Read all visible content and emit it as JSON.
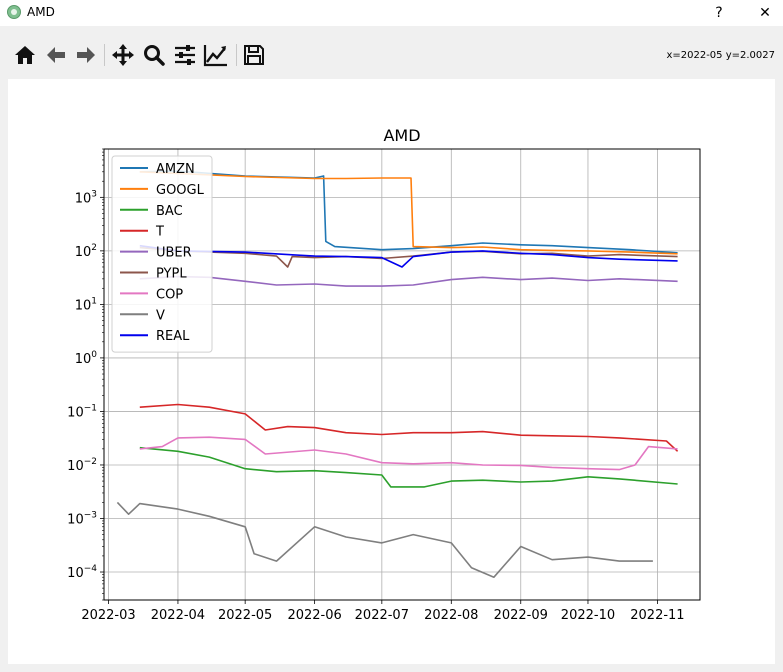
{
  "window": {
    "title": "AMD",
    "help_label": "?",
    "close_label": "✕"
  },
  "toolbar": {
    "buttons": [
      "home-icon",
      "back-icon",
      "forward-icon",
      "pan-icon",
      "zoom-icon",
      "configure-icon",
      "edit-axes-icon",
      "save-icon"
    ],
    "coord_readout": "x=2022-05 y=2.0027"
  },
  "chart_data": {
    "type": "line",
    "title": "AMD",
    "xlabel": "",
    "ylabel": "",
    "yscale": "log",
    "xlim": [
      "2022-02-27",
      "2022-11-20"
    ],
    "ylim": [
      3e-05,
      8000
    ],
    "grid": true,
    "legend_placement": "upper-left",
    "x_ticks": [
      "2022-03",
      "2022-04",
      "2022-05",
      "2022-06",
      "2022-07",
      "2022-08",
      "2022-09",
      "2022-10",
      "2022-11"
    ],
    "y_ticks": [
      {
        "value": 0.0001,
        "base": "10",
        "exp": "−4"
      },
      {
        "value": 0.001,
        "base": "10",
        "exp": "−3"
      },
      {
        "value": 0.01,
        "base": "10",
        "exp": "−2"
      },
      {
        "value": 0.1,
        "base": "10",
        "exp": "−1"
      },
      {
        "value": 1,
        "base": "10",
        "exp": "0"
      },
      {
        "value": 10,
        "base": "10",
        "exp": "1"
      },
      {
        "value": 100,
        "base": "10",
        "exp": "2"
      },
      {
        "value": 1000,
        "base": "10",
        "exp": "3"
      }
    ],
    "series": [
      {
        "name": "AMZN",
        "color": "#1f77b4",
        "points": [
          [
            "2022-03-15",
            3000
          ],
          [
            "2022-04-01",
            3100
          ],
          [
            "2022-05-01",
            2500
          ],
          [
            "2022-06-01",
            2300
          ],
          [
            "2022-06-05",
            2500
          ],
          [
            "2022-06-06",
            150
          ],
          [
            "2022-06-10",
            120
          ],
          [
            "2022-07-01",
            105
          ],
          [
            "2022-07-15",
            110
          ],
          [
            "2022-08-01",
            125
          ],
          [
            "2022-08-15",
            140
          ],
          [
            "2022-09-01",
            130
          ],
          [
            "2022-09-15",
            125
          ],
          [
            "2022-10-01",
            115
          ],
          [
            "2022-10-20",
            105
          ],
          [
            "2022-11-10",
            92
          ]
        ]
      },
      {
        "name": "GOOGL",
        "color": "#ff7f0e",
        "points": [
          [
            "2022-03-15",
            3000
          ],
          [
            "2022-04-01",
            2800
          ],
          [
            "2022-05-01",
            2450
          ],
          [
            "2022-06-01",
            2250
          ],
          [
            "2022-06-15",
            2250
          ],
          [
            "2022-07-01",
            2300
          ],
          [
            "2022-07-14",
            2300
          ],
          [
            "2022-07-15",
            120
          ],
          [
            "2022-08-01",
            115
          ],
          [
            "2022-08-15",
            118
          ],
          [
            "2022-09-01",
            105
          ],
          [
            "2022-09-15",
            102
          ],
          [
            "2022-10-01",
            100
          ],
          [
            "2022-10-20",
            95
          ],
          [
            "2022-11-10",
            88
          ]
        ]
      },
      {
        "name": "BAC",
        "color": "#2ca02c",
        "points": [
          [
            "2022-03-15",
            0.021
          ],
          [
            "2022-04-01",
            0.018
          ],
          [
            "2022-04-15",
            0.014
          ],
          [
            "2022-05-01",
            0.0085
          ],
          [
            "2022-05-15",
            0.0075
          ],
          [
            "2022-06-01",
            0.0078
          ],
          [
            "2022-06-15",
            0.0072
          ],
          [
            "2022-07-01",
            0.0065
          ],
          [
            "2022-07-05",
            0.0039
          ],
          [
            "2022-07-20",
            0.0039
          ],
          [
            "2022-08-01",
            0.005
          ],
          [
            "2022-08-15",
            0.0052
          ],
          [
            "2022-09-01",
            0.0048
          ],
          [
            "2022-09-15",
            0.005
          ],
          [
            "2022-10-01",
            0.006
          ],
          [
            "2022-10-15",
            0.0055
          ],
          [
            "2022-11-10",
            0.0044
          ]
        ]
      },
      {
        "name": "T",
        "color": "#d62728",
        "points": [
          [
            "2022-03-15",
            0.12
          ],
          [
            "2022-04-01",
            0.135
          ],
          [
            "2022-04-15",
            0.12
          ],
          [
            "2022-05-01",
            0.09
          ],
          [
            "2022-05-10",
            0.045
          ],
          [
            "2022-05-20",
            0.052
          ],
          [
            "2022-06-01",
            0.05
          ],
          [
            "2022-06-15",
            0.04
          ],
          [
            "2022-07-01",
            0.037
          ],
          [
            "2022-07-15",
            0.04
          ],
          [
            "2022-08-01",
            0.04
          ],
          [
            "2022-08-15",
            0.042
          ],
          [
            "2022-09-01",
            0.036
          ],
          [
            "2022-09-15",
            0.035
          ],
          [
            "2022-10-01",
            0.034
          ],
          [
            "2022-10-15",
            0.032
          ],
          [
            "2022-11-05",
            0.028
          ],
          [
            "2022-11-10",
            0.018
          ]
        ]
      },
      {
        "name": "UBER",
        "color": "#9467bd",
        "points": [
          [
            "2022-03-15",
            30
          ],
          [
            "2022-04-01",
            33
          ],
          [
            "2022-04-15",
            32
          ],
          [
            "2022-05-01",
            27
          ],
          [
            "2022-05-15",
            23
          ],
          [
            "2022-06-01",
            24
          ],
          [
            "2022-06-15",
            22
          ],
          [
            "2022-07-01",
            22
          ],
          [
            "2022-07-15",
            23
          ],
          [
            "2022-08-01",
            29
          ],
          [
            "2022-08-15",
            32
          ],
          [
            "2022-09-01",
            29
          ],
          [
            "2022-09-15",
            31
          ],
          [
            "2022-10-01",
            28
          ],
          [
            "2022-10-15",
            30
          ],
          [
            "2022-11-10",
            27
          ]
        ]
      },
      {
        "name": "PYPL",
        "color": "#8c564b",
        "points": [
          [
            "2022-03-15",
            115
          ],
          [
            "2022-04-01",
            100
          ],
          [
            "2022-05-01",
            90
          ],
          [
            "2022-05-15",
            80
          ],
          [
            "2022-05-20",
            50
          ],
          [
            "2022-05-22",
            78
          ],
          [
            "2022-06-01",
            75
          ],
          [
            "2022-06-15",
            78
          ],
          [
            "2022-07-01",
            72
          ],
          [
            "2022-07-15",
            80
          ],
          [
            "2022-08-01",
            95
          ],
          [
            "2022-08-15",
            98
          ],
          [
            "2022-09-01",
            88
          ],
          [
            "2022-09-15",
            90
          ],
          [
            "2022-10-01",
            80
          ],
          [
            "2022-10-15",
            85
          ],
          [
            "2022-11-10",
            78
          ]
        ]
      },
      {
        "name": "COP",
        "color": "#e377c2",
        "points": [
          [
            "2022-03-15",
            0.02
          ],
          [
            "2022-03-25",
            0.022
          ],
          [
            "2022-04-01",
            0.032
          ],
          [
            "2022-04-15",
            0.033
          ],
          [
            "2022-05-01",
            0.03
          ],
          [
            "2022-05-10",
            0.016
          ],
          [
            "2022-06-01",
            0.019
          ],
          [
            "2022-06-15",
            0.016
          ],
          [
            "2022-07-01",
            0.011
          ],
          [
            "2022-07-15",
            0.0105
          ],
          [
            "2022-08-01",
            0.011
          ],
          [
            "2022-08-15",
            0.01
          ],
          [
            "2022-09-01",
            0.0098
          ],
          [
            "2022-09-15",
            0.009
          ],
          [
            "2022-10-01",
            0.0085
          ],
          [
            "2022-10-15",
            0.0082
          ],
          [
            "2022-10-22",
            0.01
          ],
          [
            "2022-10-28",
            0.022
          ],
          [
            "2022-11-10",
            0.02
          ]
        ]
      },
      {
        "name": "V",
        "color": "#7f7f7f",
        "points": [
          [
            "2022-03-05",
            0.002
          ],
          [
            "2022-03-10",
            0.0012
          ],
          [
            "2022-03-15",
            0.0019
          ],
          [
            "2022-04-01",
            0.0015
          ],
          [
            "2022-04-15",
            0.0011
          ],
          [
            "2022-05-01",
            0.0007
          ],
          [
            "2022-05-05",
            0.00022
          ],
          [
            "2022-05-15",
            0.00016
          ],
          [
            "2022-06-01",
            0.0007
          ],
          [
            "2022-06-15",
            0.00045
          ],
          [
            "2022-07-01",
            0.00035
          ],
          [
            "2022-07-15",
            0.0005
          ],
          [
            "2022-08-01",
            0.00035
          ],
          [
            "2022-08-10",
            0.00012
          ],
          [
            "2022-08-20",
            8e-05
          ],
          [
            "2022-09-01",
            0.0003
          ],
          [
            "2022-09-15",
            0.00017
          ],
          [
            "2022-10-01",
            0.00019
          ],
          [
            "2022-10-15",
            0.00016
          ],
          [
            "2022-10-30",
            0.00016
          ]
        ]
      },
      {
        "name": "REAL",
        "color": "#0000ee",
        "points": [
          [
            "2022-03-15",
            125
          ],
          [
            "2022-04-01",
            100
          ],
          [
            "2022-05-01",
            95
          ],
          [
            "2022-06-01",
            80
          ],
          [
            "2022-06-15",
            78
          ],
          [
            "2022-07-01",
            75
          ],
          [
            "2022-07-10",
            50
          ],
          [
            "2022-07-15",
            78
          ],
          [
            "2022-08-01",
            95
          ],
          [
            "2022-08-15",
            100
          ],
          [
            "2022-09-01",
            90
          ],
          [
            "2022-09-15",
            85
          ],
          [
            "2022-10-01",
            75
          ],
          [
            "2022-10-15",
            70
          ],
          [
            "2022-11-10",
            65
          ]
        ]
      }
    ]
  }
}
